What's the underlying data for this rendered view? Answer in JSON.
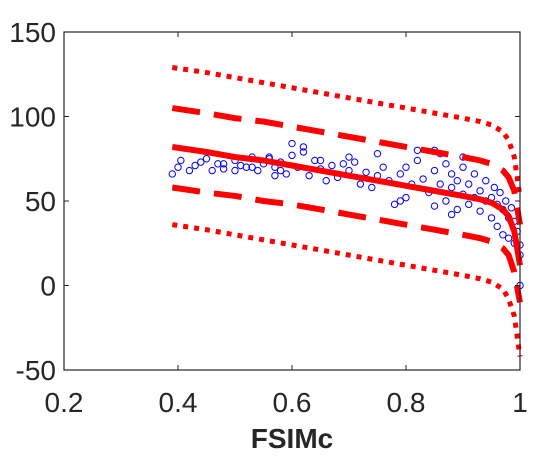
{
  "chart_data": {
    "type": "scatter",
    "title": "",
    "xlabel": "FSIMc",
    "ylabel": "",
    "xlim": [
      0.2,
      1.0
    ],
    "ylim": [
      -50,
      150
    ],
    "xticks": [
      "0.2",
      "0.4",
      "0.6",
      "0.8",
      "1"
    ],
    "yticks": [
      "-50",
      "0",
      "50",
      "100",
      "150"
    ],
    "grid": false,
    "legend": "none",
    "colors": {
      "points": "#0000ff",
      "fit": "#ff0000",
      "axes": "#262626"
    },
    "scatter": {
      "x": [
        0.39,
        0.4,
        0.405,
        0.42,
        0.43,
        0.44,
        0.45,
        0.46,
        0.47,
        0.48,
        0.5,
        0.51,
        0.52,
        0.53,
        0.54,
        0.55,
        0.56,
        0.57,
        0.58,
        0.59,
        0.6,
        0.61,
        0.62,
        0.63,
        0.64,
        0.65,
        0.66,
        0.67,
        0.68,
        0.69,
        0.7,
        0.71,
        0.72,
        0.73,
        0.74,
        0.75,
        0.76,
        0.77,
        0.78,
        0.79,
        0.8,
        0.8,
        0.81,
        0.82,
        0.83,
        0.84,
        0.85,
        0.85,
        0.86,
        0.87,
        0.87,
        0.88,
        0.88,
        0.89,
        0.89,
        0.9,
        0.9,
        0.91,
        0.91,
        0.92,
        0.92,
        0.93,
        0.93,
        0.94,
        0.94,
        0.95,
        0.95,
        0.955,
        0.96,
        0.96,
        0.965,
        0.97,
        0.97,
        0.975,
        0.98,
        0.98,
        0.985,
        0.99,
        0.99,
        0.995,
        1.0,
        1.0,
        1.0,
        0.85,
        0.86,
        0.9,
        0.6,
        0.62,
        0.82,
        0.75,
        0.7,
        0.65,
        0.56,
        0.58,
        0.48,
        0.5,
        0.53,
        0.57,
        0.79,
        0.88
      ],
      "y": [
        66,
        70,
        74,
        68,
        71,
        73,
        75,
        68,
        72,
        69,
        74,
        71,
        70,
        76,
        68,
        72,
        75,
        70,
        73,
        66,
        77,
        70,
        79,
        65,
        74,
        69,
        62,
        71,
        64,
        72,
        68,
        73,
        60,
        67,
        58,
        65,
        70,
        62,
        48,
        66,
        52,
        70,
        60,
        74,
        63,
        55,
        68,
        47,
        60,
        72,
        50,
        58,
        66,
        45,
        62,
        54,
        70,
        48,
        60,
        52,
        66,
        44,
        56,
        50,
        62,
        40,
        52,
        58,
        35,
        48,
        55,
        30,
        45,
        50,
        28,
        40,
        46,
        25,
        38,
        32,
        24,
        18,
        0,
        80,
        78,
        76,
        84,
        82,
        80,
        78,
        76,
        74,
        76,
        68,
        72,
        68,
        70,
        65,
        50,
        42
      ]
    },
    "fit_curves": [
      {
        "style": "solid",
        "x": [
          0.39,
          0.45,
          0.5,
          0.55,
          0.6,
          0.65,
          0.7,
          0.75,
          0.8,
          0.85,
          0.9,
          0.93,
          0.95,
          0.97,
          0.98,
          0.99,
          1.0
        ],
        "y": [
          82,
          79,
          76,
          74,
          71,
          68,
          65,
          62,
          59,
          56,
          53,
          51,
          49,
          45,
          41,
          32,
          12
        ]
      },
      {
        "style": "dashed",
        "x": [
          0.39,
          0.45,
          0.5,
          0.55,
          0.6,
          0.65,
          0.7,
          0.75,
          0.8,
          0.85,
          0.9,
          0.93,
          0.95,
          0.97,
          0.98,
          0.99,
          1.0
        ],
        "y": [
          105,
          102,
          99,
          97,
          94,
          91,
          88,
          85,
          82,
          79,
          76,
          74,
          72,
          68,
          64,
          56,
          36
        ]
      },
      {
        "style": "dashed",
        "x": [
          0.39,
          0.45,
          0.5,
          0.55,
          0.6,
          0.65,
          0.7,
          0.75,
          0.8,
          0.85,
          0.9,
          0.93,
          0.95,
          0.97,
          0.98,
          0.99,
          1.0
        ],
        "y": [
          58,
          55,
          53,
          50,
          48,
          45,
          42,
          39,
          36,
          33,
          30,
          28,
          26,
          22,
          18,
          8,
          -10
        ]
      },
      {
        "style": "dotted",
        "x": [
          0.39,
          0.45,
          0.5,
          0.55,
          0.6,
          0.65,
          0.7,
          0.75,
          0.8,
          0.85,
          0.9,
          0.93,
          0.95,
          0.97,
          0.98,
          0.99,
          1.0
        ],
        "y": [
          129,
          126,
          123,
          120,
          117,
          114,
          111,
          108,
          105,
          102,
          99,
          97,
          95,
          91,
          86,
          76,
          52
        ]
      },
      {
        "style": "dotted",
        "x": [
          0.39,
          0.45,
          0.5,
          0.55,
          0.6,
          0.65,
          0.7,
          0.75,
          0.8,
          0.85,
          0.9,
          0.93,
          0.95,
          0.97,
          0.98,
          0.99,
          1.0
        ],
        "y": [
          36,
          33,
          30,
          27,
          24,
          21,
          18,
          15,
          12,
          9,
          6,
          4,
          2,
          -2,
          -8,
          -18,
          -42
        ]
      }
    ]
  }
}
